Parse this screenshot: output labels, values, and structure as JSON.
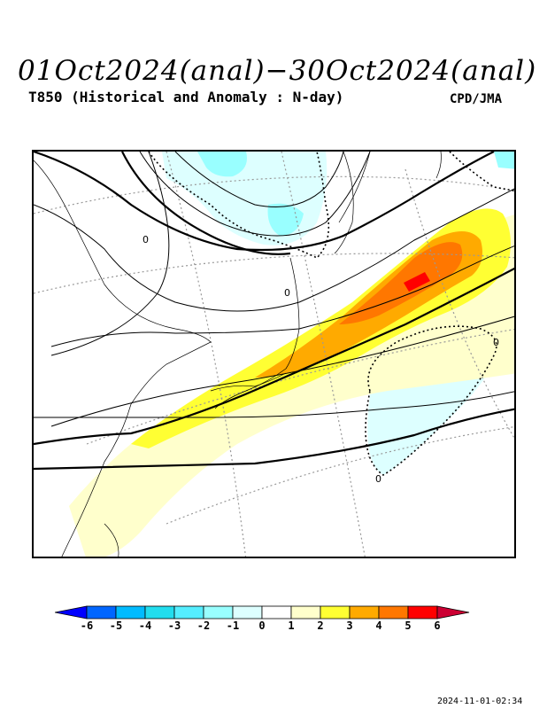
{
  "header": {
    "title": "01Oct2024(anal)−30Oct2024(anal)",
    "subtitle": "T850 (Historical and Anomaly : N-day)",
    "agency": "CPD/JMA"
  },
  "legend": {
    "labels": [
      "-6",
      "-5",
      "-4",
      "-3",
      "-2",
      "-1",
      "0",
      "1",
      "2",
      "3",
      "4",
      "5",
      "6"
    ],
    "colors": [
      "#0000ff",
      "#0066ff",
      "#00bbff",
      "#22ddee",
      "#55eeff",
      "#99ffff",
      "#ddffff",
      "#ffffff",
      "#ffffcc",
      "#ffff33",
      "#ffaa00",
      "#ff7700",
      "#ff0000",
      "#cc0033"
    ]
  },
  "map": {
    "contour_labels": [
      "0",
      "0",
      "0",
      "0"
    ]
  },
  "footer": {
    "timestamp": "2024-11-01-02:34"
  }
}
